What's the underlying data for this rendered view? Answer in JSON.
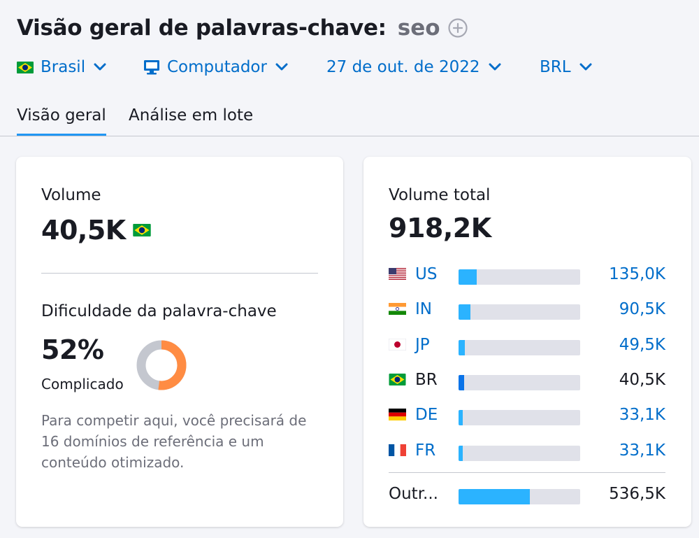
{
  "header": {
    "title": "Visão geral de palavras-chave:",
    "keyword": "seo",
    "add_icon": "plus-circle-icon"
  },
  "filters": {
    "country": {
      "label": "Brasil",
      "icon": "brazil-flag-icon"
    },
    "device": {
      "label": "Computador",
      "icon": "monitor-icon"
    },
    "date": {
      "label": "27 de out. de 2022"
    },
    "currency": {
      "label": "BRL"
    }
  },
  "tabs": [
    {
      "label": "Visão geral",
      "active": true
    },
    {
      "label": "Análise em lote",
      "active": false
    }
  ],
  "volume_card": {
    "volume_label": "Volume",
    "volume_value": "40,5K",
    "volume_flag": "brazil-flag-icon",
    "difficulty_label": "Dificuldade da palavra-chave",
    "difficulty_value": "52%",
    "difficulty_percent": 52,
    "difficulty_level": "Complicado",
    "difficulty_color": "#ff8c43",
    "description": "Para competir aqui, você precisará de 16 domínios de referência e um conteúdo otimizado."
  },
  "total_card": {
    "label": "Volume total",
    "value": "918,2K",
    "countries": [
      {
        "code": "US",
        "value": "135,0K",
        "share": 0.147,
        "flag": "usa-flag-icon",
        "link": true
      },
      {
        "code": "IN",
        "value": "90,5K",
        "share": 0.099,
        "flag": "india-flag-icon",
        "link": true
      },
      {
        "code": "JP",
        "value": "49,5K",
        "share": 0.054,
        "flag": "japan-flag-icon",
        "link": true
      },
      {
        "code": "BR",
        "value": "40,5K",
        "share": 0.044,
        "flag": "brazil-flag-icon",
        "link": false
      },
      {
        "code": "DE",
        "value": "33,1K",
        "share": 0.036,
        "flag": "germany-flag-icon",
        "link": true
      },
      {
        "code": "FR",
        "value": "33,1K",
        "share": 0.036,
        "flag": "france-flag-icon",
        "link": true
      }
    ],
    "other": {
      "label": "Outr...",
      "value": "536,5K",
      "share": 0.584
    }
  },
  "colors": {
    "link": "#006dca",
    "bar": "#2bb3ff",
    "bar_selected": "#0a73e8",
    "track": "#e0e1e9",
    "tab_underline": "#2196f3"
  }
}
